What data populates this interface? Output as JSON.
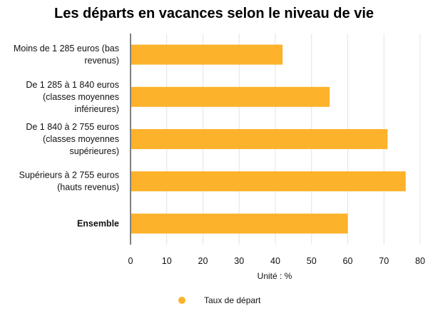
{
  "chart_data": {
    "type": "bar",
    "orientation": "horizontal",
    "title": "Les départs en vacances selon le niveau de vie",
    "categories": [
      [
        "Moins de 1 285 euros (bas",
        "revenus)"
      ],
      [
        "De 1 285 à 1 840 euros",
        "(classes moyennes",
        "inférieures)"
      ],
      [
        "De 1 840 à 2 755 euros",
        "(classes moyennes",
        "supérieures)"
      ],
      [
        "Supérieurs à 2 755 euros",
        "(hauts revenus)"
      ],
      [
        "Ensemble"
      ]
    ],
    "bold_categories": [
      4
    ],
    "series": [
      {
        "name": "Taux de départ",
        "values": [
          42,
          55,
          71,
          76,
          60
        ],
        "color": "#FDB22B"
      }
    ],
    "xlabel": "Unité : %",
    "xlim": [
      0,
      80
    ],
    "xticks": [
      0,
      10,
      20,
      30,
      40,
      50,
      60,
      70,
      80
    ],
    "grid": true,
    "legend": "bottom-center"
  }
}
